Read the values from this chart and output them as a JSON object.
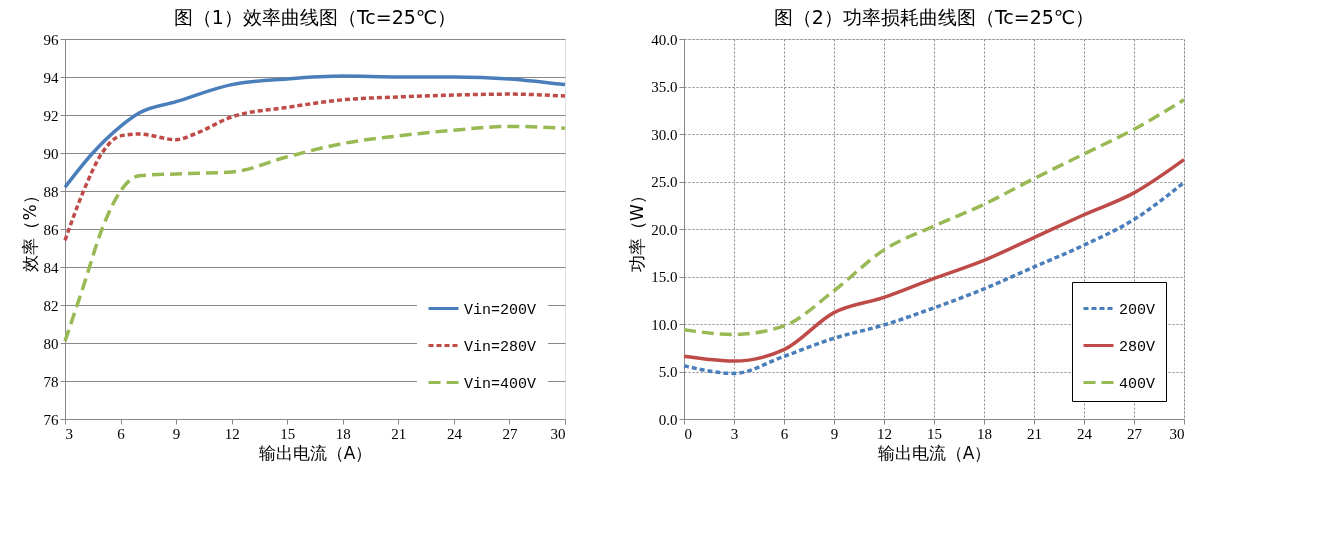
{
  "chart_data": [
    {
      "type": "line",
      "title": "图（1）效率曲线图（Tc=25℃）",
      "xlabel": "输出电流（A）",
      "ylabel": "效率（%）",
      "xlim": [
        3,
        30
      ],
      "xticks": [
        3,
        6,
        9,
        12,
        15,
        18,
        21,
        24,
        27,
        30
      ],
      "ylim": [
        76,
        96
      ],
      "yticks": [
        76,
        78,
        80,
        82,
        84,
        86,
        88,
        90,
        92,
        94,
        96
      ],
      "grid": "y",
      "legend": "bottom right",
      "series": [
        {
          "name": "Vin=200V",
          "color": "#4a7ebb",
          "line_style": "solid",
          "x": [
            3,
            4.5,
            6,
            7,
            9,
            12,
            15,
            18,
            21,
            24,
            27,
            30
          ],
          "values": [
            88.2,
            90,
            91.4,
            92.1,
            92.7,
            93.6,
            93.9,
            94.05,
            94.0,
            94.0,
            93.9,
            93.6
          ]
        },
        {
          "name": "Vin=280V",
          "color": "#be4b48",
          "line_style": "dotted",
          "x": [
            3,
            4,
            5,
            6,
            7,
            9,
            10,
            12,
            15,
            18,
            21,
            24,
            27,
            30
          ],
          "values": [
            85.4,
            88,
            90,
            90.9,
            91.0,
            90.7,
            91.0,
            91.9,
            92.4,
            92.8,
            92.95,
            93.05,
            93.1,
            93.0
          ]
        },
        {
          "name": "Vin=400V",
          "color": "#98b954",
          "line_style": "dashed",
          "x": [
            3,
            4,
            5,
            6,
            7,
            9,
            12,
            15,
            18,
            21,
            24,
            27,
            30
          ],
          "values": [
            80.1,
            83,
            86,
            88.0,
            88.8,
            88.9,
            89.0,
            89.8,
            90.5,
            90.9,
            91.2,
            91.4,
            91.3
          ]
        }
      ]
    },
    {
      "type": "line",
      "title": "图（2）功率损耗曲线图（Tc=25℃）",
      "xlabel": "输出电流（A）",
      "ylabel": "功率（W）",
      "xlim": [
        0,
        30
      ],
      "xticks": [
        0,
        3,
        6,
        9,
        12,
        15,
        18,
        21,
        24,
        27,
        30
      ],
      "ylim": [
        0,
        40
      ],
      "yticks": [
        {
          "value": 0,
          "label": "0.0"
        },
        {
          "value": 5,
          "label": "5.0"
        },
        {
          "value": 10,
          "label": "10.0"
        },
        {
          "value": 15,
          "label": "15.0"
        },
        {
          "value": 20,
          "label": "20.0"
        },
        {
          "value": 25,
          "label": "25.0"
        },
        {
          "value": 30,
          "label": "30.0"
        },
        {
          "value": 35,
          "label": "35.0"
        },
        {
          "value": 40,
          "label": "40.0"
        }
      ],
      "grid": true,
      "legend": "bottom right",
      "series": [
        {
          "name": "200V",
          "color": "#4a7ebb",
          "line_style": "dotted",
          "x": [
            0,
            3,
            6,
            9,
            12,
            15,
            18,
            21,
            24,
            27,
            30
          ],
          "values": [
            5.6,
            4.8,
            6.6,
            8.5,
            9.9,
            11.7,
            13.7,
            16.0,
            18.3,
            21.0,
            24.9
          ]
        },
        {
          "name": "280V",
          "color": "#be4b48",
          "line_style": "solid",
          "x": [
            0,
            3,
            6,
            9,
            12,
            15,
            18,
            21,
            24,
            27,
            30
          ],
          "values": [
            6.6,
            6.1,
            7.3,
            11.2,
            12.8,
            14.8,
            16.7,
            19.1,
            21.5,
            23.8,
            27.3
          ]
        },
        {
          "name": "400V",
          "color": "#98b954",
          "line_style": "dashed",
          "x": [
            0,
            3,
            6,
            9,
            12,
            15,
            18,
            21,
            24,
            27,
            30
          ],
          "values": [
            9.4,
            8.9,
            9.8,
            13.5,
            17.8,
            20.3,
            22.6,
            25.3,
            27.9,
            30.5,
            33.6
          ]
        }
      ]
    }
  ]
}
